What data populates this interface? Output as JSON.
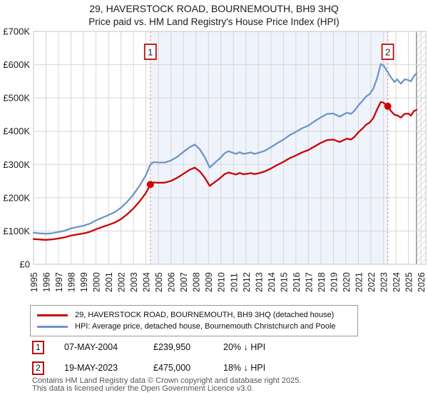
{
  "title": {
    "line1": "29, HAVERSTOCK ROAD, BOURNEMOUTH, BH9 3HQ",
    "line2": "Price paid vs. HM Land Registry's House Price Index (HPI)"
  },
  "legend": {
    "items": [
      {
        "label": "29, HAVERSTOCK ROAD, BOURNEMOUTH, BH9 3HQ (detached house)",
        "color": "#cc0000"
      },
      {
        "label": "HPI: Average price, detached house, Bournemouth Christchurch and Poole",
        "color": "#6d96c8"
      }
    ]
  },
  "transactions": [
    {
      "num": "1",
      "date": "07-MAY-2004",
      "price": "£239,950",
      "hpi_diff": "20% ↓ HPI"
    },
    {
      "num": "2",
      "date": "19-MAY-2023",
      "price": "£475,000",
      "hpi_diff": "18% ↓ HPI"
    }
  ],
  "footer": {
    "line1": "Contains HM Land Registry data © Crown copyright and database right 2025.",
    "line2": "This data is licensed under the Open Government Licence v3.0."
  },
  "chart_data": {
    "type": "line",
    "title": "Price paid vs. HM Land Registry's House Price Index (HPI)",
    "xlabel": "",
    "ylabel": "",
    "xlim": [
      1995,
      2026.4
    ],
    "ylim": [
      0,
      700000
    ],
    "grid": true,
    "legend_position": "below",
    "y_tick_values": [
      0,
      100000,
      200000,
      300000,
      400000,
      500000,
      600000,
      700000
    ],
    "y_tick_labels": [
      "£0",
      "£100K",
      "£200K",
      "£300K",
      "£400K",
      "£500K",
      "£600K",
      "£700K"
    ],
    "x_tick_years": [
      1995,
      1996,
      1997,
      1998,
      1999,
      2000,
      2001,
      2002,
      2003,
      2004,
      2005,
      2006,
      2007,
      2008,
      2009,
      2010,
      2011,
      2012,
      2013,
      2014,
      2015,
      2016,
      2017,
      2018,
      2019,
      2020,
      2021,
      2022,
      2023,
      2024,
      2025,
      2026
    ],
    "shade_between_sales": [
      2004.35,
      2023.35
    ],
    "future_hatch_start": 2025.65,
    "colors": {
      "price_line": "#cc0000",
      "hpi_line": "#6d96c8",
      "sale_vline": "#f08a8a",
      "shade": "#eff3fb",
      "grid": "#d6d6d6",
      "plot_border": "#c4c4c4",
      "hatch": "#b8b8b8",
      "marker_box_border": "#bb0b0b"
    },
    "sales": [
      {
        "num": "1",
        "year": 2004.35,
        "price": 239950
      },
      {
        "num": "2",
        "year": 2023.35,
        "price": 475000
      }
    ],
    "series": [
      {
        "name": "HPI: Average price, detached house, Bournemouth Christchurch and Poole",
        "color": "#6d96c8",
        "points": [
          [
            1995.0,
            95000
          ],
          [
            1995.5,
            93000
          ],
          [
            1996.0,
            92000
          ],
          [
            1996.5,
            93500
          ],
          [
            1997.0,
            97000
          ],
          [
            1997.5,
            101000
          ],
          [
            1998.0,
            108000
          ],
          [
            1998.5,
            112000
          ],
          [
            1999.0,
            116000
          ],
          [
            1999.5,
            122000
          ],
          [
            2000.0,
            132000
          ],
          [
            2000.5,
            140000
          ],
          [
            2001.0,
            148000
          ],
          [
            2001.5,
            157000
          ],
          [
            2002.0,
            170000
          ],
          [
            2002.5,
            188000
          ],
          [
            2003.0,
            210000
          ],
          [
            2003.5,
            237000
          ],
          [
            2004.0,
            268000
          ],
          [
            2004.35,
            300000
          ],
          [
            2004.6,
            307000
          ],
          [
            2005.0,
            306000
          ],
          [
            2005.5,
            306000
          ],
          [
            2006.0,
            312000
          ],
          [
            2006.5,
            323000
          ],
          [
            2007.0,
            338000
          ],
          [
            2007.5,
            352000
          ],
          [
            2007.9,
            360000
          ],
          [
            2008.3,
            346000
          ],
          [
            2008.7,
            322000
          ],
          [
            2009.1,
            291000
          ],
          [
            2009.5,
            305000
          ],
          [
            2009.9,
            318000
          ],
          [
            2010.3,
            334000
          ],
          [
            2010.6,
            340000
          ],
          [
            2010.9,
            336000
          ],
          [
            2011.2,
            332000
          ],
          [
            2011.5,
            337000
          ],
          [
            2011.8,
            332000
          ],
          [
            2012.1,
            334000
          ],
          [
            2012.4,
            336000
          ],
          [
            2012.7,
            332000
          ],
          [
            2013.0,
            335000
          ],
          [
            2013.5,
            341000
          ],
          [
            2014.0,
            352000
          ],
          [
            2014.5,
            364000
          ],
          [
            2015.0,
            375000
          ],
          [
            2015.5,
            388000
          ],
          [
            2016.0,
            398000
          ],
          [
            2016.5,
            409000
          ],
          [
            2017.0,
            417000
          ],
          [
            2017.5,
            430000
          ],
          [
            2018.0,
            442000
          ],
          [
            2018.5,
            452000
          ],
          [
            2019.0,
            453000
          ],
          [
            2019.5,
            444000
          ],
          [
            2019.8,
            450000
          ],
          [
            2020.1,
            456000
          ],
          [
            2020.4,
            452000
          ],
          [
            2020.7,
            462000
          ],
          [
            2021.0,
            478000
          ],
          [
            2021.3,
            490000
          ],
          [
            2021.6,
            504000
          ],
          [
            2021.9,
            512000
          ],
          [
            2022.2,
            528000
          ],
          [
            2022.5,
            560000
          ],
          [
            2022.8,
            602000
          ],
          [
            2023.0,
            598000
          ],
          [
            2023.35,
            578000
          ],
          [
            2023.6,
            562000
          ],
          [
            2023.9,
            548000
          ],
          [
            2024.1,
            556000
          ],
          [
            2024.4,
            543000
          ],
          [
            2024.7,
            556000
          ],
          [
            2025.0,
            554000
          ],
          [
            2025.2,
            550000
          ],
          [
            2025.45,
            566000
          ],
          [
            2025.65,
            574000
          ]
        ]
      },
      {
        "name": "29, HAVERSTOCK ROAD, BOURNEMOUTH, BH9 3HQ (detached house)",
        "color": "#cc0000",
        "points": [
          [
            1995.0,
            76000
          ],
          [
            1995.5,
            74500
          ],
          [
            1996.0,
            73500
          ],
          [
            1996.5,
            75000
          ],
          [
            1997.0,
            77500
          ],
          [
            1997.5,
            81000
          ],
          [
            1998.0,
            86500
          ],
          [
            1998.5,
            89500
          ],
          [
            1999.0,
            93000
          ],
          [
            1999.5,
            97500
          ],
          [
            2000.0,
            105500
          ],
          [
            2000.5,
            112000
          ],
          [
            2001.0,
            118500
          ],
          [
            2001.5,
            125500
          ],
          [
            2002.0,
            136000
          ],
          [
            2002.5,
            150500
          ],
          [
            2003.0,
            168000
          ],
          [
            2003.5,
            189500
          ],
          [
            2004.0,
            214500
          ],
          [
            2004.35,
            239950
          ],
          [
            2004.6,
            246000
          ],
          [
            2005.0,
            245000
          ],
          [
            2005.5,
            245500
          ],
          [
            2006.0,
            250500
          ],
          [
            2006.5,
            260000
          ],
          [
            2007.0,
            272000
          ],
          [
            2007.5,
            284000
          ],
          [
            2007.9,
            290500
          ],
          [
            2008.3,
            279500
          ],
          [
            2008.7,
            260500
          ],
          [
            2009.1,
            235500
          ],
          [
            2009.5,
            247000
          ],
          [
            2009.9,
            258000
          ],
          [
            2010.3,
            271000
          ],
          [
            2010.6,
            276000
          ],
          [
            2010.9,
            273000
          ],
          [
            2011.2,
            270000
          ],
          [
            2011.5,
            274500
          ],
          [
            2011.8,
            270500
          ],
          [
            2012.1,
            272000
          ],
          [
            2012.4,
            274000
          ],
          [
            2012.7,
            271000
          ],
          [
            2013.0,
            273500
          ],
          [
            2013.5,
            279000
          ],
          [
            2014.0,
            288000
          ],
          [
            2014.5,
            298500
          ],
          [
            2015.0,
            308000
          ],
          [
            2015.5,
            319000
          ],
          [
            2016.0,
            327000
          ],
          [
            2016.5,
            336500
          ],
          [
            2017.0,
            343500
          ],
          [
            2017.5,
            354500
          ],
          [
            2018.0,
            365000
          ],
          [
            2018.5,
            373500
          ],
          [
            2019.0,
            375000
          ],
          [
            2019.5,
            367500
          ],
          [
            2019.8,
            373000
          ],
          [
            2020.1,
            378000
          ],
          [
            2020.4,
            375000
          ],
          [
            2020.7,
            383500
          ],
          [
            2021.0,
            397000
          ],
          [
            2021.3,
            407000
          ],
          [
            2021.6,
            419000
          ],
          [
            2021.9,
            426000
          ],
          [
            2022.2,
            439500
          ],
          [
            2022.5,
            466000
          ],
          [
            2022.8,
            488000
          ],
          [
            2023.0,
            486000
          ],
          [
            2023.35,
            475000
          ],
          [
            2023.6,
            461000
          ],
          [
            2023.9,
            449000
          ],
          [
            2024.1,
            448000
          ],
          [
            2024.4,
            441000
          ],
          [
            2024.7,
            452000
          ],
          [
            2025.0,
            453000
          ],
          [
            2025.2,
            447000
          ],
          [
            2025.45,
            461000
          ],
          [
            2025.65,
            464000
          ]
        ]
      }
    ]
  }
}
